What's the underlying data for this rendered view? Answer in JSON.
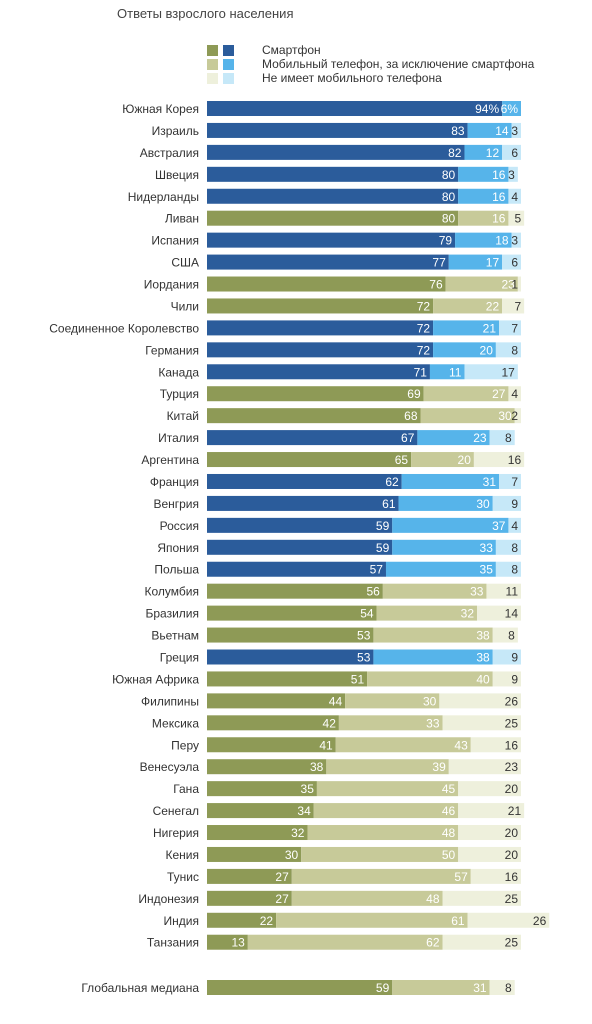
{
  "subtitle": "Ответы взрослого населения",
  "legend": [
    {
      "label": "Смартфон",
      "colors": [
        "#8e9a56",
        "#2b5c9b"
      ]
    },
    {
      "label": "Мобильный телефон, за исключение смартфона",
      "colors": [
        "#c7ca99",
        "#56b4ea"
      ]
    },
    {
      "label": "Не имеет мобильного телефона",
      "colors": [
        "#eef0dc",
        "#c6e8f8"
      ]
    }
  ],
  "colors": {
    "blue": [
      "#2b5c9b",
      "#56b4ea",
      "#c6e8f8"
    ],
    "green": [
      "#8e9a56",
      "#c7ca99",
      "#eef0dc"
    ]
  },
  "chart_data": {
    "type": "bar",
    "stacked": true,
    "orientation": "horizontal",
    "series_names": [
      "Смартфон",
      "Мобильный телефон, за исключение смартфона",
      "Не имеет мобильного телефона"
    ],
    "rows": [
      {
        "country": "Южная Корея",
        "values": [
          94,
          6,
          0
        ],
        "labels": [
          "94%",
          "6%",
          ""
        ],
        "palette": "blue"
      },
      {
        "country": "Израиль",
        "values": [
          83,
          14,
          3
        ],
        "labels": [
          "83",
          "14",
          "3"
        ],
        "palette": "blue"
      },
      {
        "country": "Австралия",
        "values": [
          82,
          12,
          6
        ],
        "labels": [
          "82",
          "12",
          "6"
        ],
        "palette": "blue"
      },
      {
        "country": "Швеция",
        "values": [
          80,
          16,
          3
        ],
        "labels": [
          "80",
          "16",
          "3"
        ],
        "palette": "blue"
      },
      {
        "country": "Нидерланды",
        "values": [
          80,
          16,
          4
        ],
        "labels": [
          "80",
          "16",
          "4"
        ],
        "palette": "blue"
      },
      {
        "country": "Ливан",
        "values": [
          80,
          16,
          5
        ],
        "labels": [
          "80",
          "16",
          "5"
        ],
        "palette": "green"
      },
      {
        "country": "Испания",
        "values": [
          79,
          18,
          3
        ],
        "labels": [
          "79",
          "18",
          "3"
        ],
        "palette": "blue"
      },
      {
        "country": "США",
        "values": [
          77,
          17,
          6
        ],
        "labels": [
          "77",
          "17",
          "6"
        ],
        "palette": "blue"
      },
      {
        "country": "Иордания",
        "values": [
          76,
          23,
          1
        ],
        "labels": [
          "76",
          "23",
          "1"
        ],
        "palette": "green"
      },
      {
        "country": "Чили",
        "values": [
          72,
          22,
          7
        ],
        "labels": [
          "72",
          "22",
          "7"
        ],
        "palette": "green"
      },
      {
        "country": "Соединенное Королевство",
        "values": [
          72,
          21,
          7
        ],
        "labels": [
          "72",
          "21",
          "7"
        ],
        "palette": "blue"
      },
      {
        "country": "Германия",
        "values": [
          72,
          20,
          8
        ],
        "labels": [
          "72",
          "20",
          "8"
        ],
        "palette": "blue"
      },
      {
        "country": "Канада",
        "values": [
          71,
          11,
          17
        ],
        "labels": [
          "71",
          "11",
          "17"
        ],
        "palette": "blue"
      },
      {
        "country": "Турция",
        "values": [
          69,
          27,
          4
        ],
        "labels": [
          "69",
          "27",
          "4"
        ],
        "palette": "green"
      },
      {
        "country": "Китай",
        "values": [
          68,
          30,
          2
        ],
        "labels": [
          "68",
          "30",
          "2"
        ],
        "palette": "green"
      },
      {
        "country": "Италия",
        "values": [
          67,
          23,
          8
        ],
        "labels": [
          "67",
          "23",
          "8"
        ],
        "palette": "blue"
      },
      {
        "country": "Аргентина",
        "values": [
          65,
          20,
          16
        ],
        "labels": [
          "65",
          "20",
          "16"
        ],
        "palette": "green"
      },
      {
        "country": "Франция",
        "values": [
          62,
          31,
          7
        ],
        "labels": [
          "62",
          "31",
          "7"
        ],
        "palette": "blue"
      },
      {
        "country": "Венгрия",
        "values": [
          61,
          30,
          9
        ],
        "labels": [
          "61",
          "30",
          "9"
        ],
        "palette": "blue"
      },
      {
        "country": "Россия",
        "values": [
          59,
          37,
          4
        ],
        "labels": [
          "59",
          "37",
          "4"
        ],
        "palette": "blue"
      },
      {
        "country": "Япония",
        "values": [
          59,
          33,
          8
        ],
        "labels": [
          "59",
          "33",
          "8"
        ],
        "palette": "blue"
      },
      {
        "country": "Польша",
        "values": [
          57,
          35,
          8
        ],
        "labels": [
          "57",
          "35",
          "8"
        ],
        "palette": "blue"
      },
      {
        "country": "Колумбия",
        "values": [
          56,
          33,
          11
        ],
        "labels": [
          "56",
          "33",
          "11"
        ],
        "palette": "green"
      },
      {
        "country": "Бразилия",
        "values": [
          54,
          32,
          14
        ],
        "labels": [
          "54",
          "32",
          "14"
        ],
        "palette": "green"
      },
      {
        "country": "Вьетнам",
        "values": [
          53,
          38,
          8
        ],
        "labels": [
          "53",
          "38",
          "8"
        ],
        "palette": "green"
      },
      {
        "country": "Греция",
        "values": [
          53,
          38,
          9
        ],
        "labels": [
          "53",
          "38",
          "9"
        ],
        "palette": "blue"
      },
      {
        "country": "Южная Африка",
        "values": [
          51,
          40,
          9
        ],
        "labels": [
          "51",
          "40",
          "9"
        ],
        "palette": "green"
      },
      {
        "country": "Филипины",
        "values": [
          44,
          30,
          26
        ],
        "labels": [
          "44",
          "30",
          "26"
        ],
        "palette": "green"
      },
      {
        "country": "Мексика",
        "values": [
          42,
          33,
          25
        ],
        "labels": [
          "42",
          "33",
          "25"
        ],
        "palette": "green"
      },
      {
        "country": "Перу",
        "values": [
          41,
          43,
          16
        ],
        "labels": [
          "41",
          "43",
          "16"
        ],
        "palette": "green"
      },
      {
        "country": "Венесуэла",
        "values": [
          38,
          39,
          23
        ],
        "labels": [
          "38",
          "39",
          "23"
        ],
        "palette": "green"
      },
      {
        "country": "Гана",
        "values": [
          35,
          45,
          20
        ],
        "labels": [
          "35",
          "45",
          "20"
        ],
        "palette": "green"
      },
      {
        "country": "Сенегал",
        "values": [
          34,
          46,
          21
        ],
        "labels": [
          "34",
          "46",
          "21"
        ],
        "palette": "green"
      },
      {
        "country": "Нигерия",
        "values": [
          32,
          48,
          20
        ],
        "labels": [
          "32",
          "48",
          "20"
        ],
        "palette": "green"
      },
      {
        "country": "Кения",
        "values": [
          30,
          50,
          20
        ],
        "labels": [
          "30",
          "50",
          "20"
        ],
        "palette": "green"
      },
      {
        "country": "Тунис",
        "values": [
          27,
          57,
          16
        ],
        "labels": [
          "27",
          "57",
          "16"
        ],
        "palette": "green"
      },
      {
        "country": "Индонезия",
        "values": [
          27,
          48,
          25
        ],
        "labels": [
          "27",
          "48",
          "25"
        ],
        "palette": "green"
      },
      {
        "country": "Индия",
        "values": [
          22,
          61,
          26
        ],
        "labels": [
          "22",
          "61",
          "26"
        ],
        "palette": "green"
      },
      {
        "country": "Танзания",
        "values": [
          13,
          62,
          25
        ],
        "labels": [
          "13",
          "62",
          "25"
        ],
        "palette": "green"
      }
    ],
    "median": {
      "country": "Глобальная медиана",
      "values": [
        59,
        31,
        8
      ],
      "labels": [
        "59",
        "31",
        "8"
      ],
      "palette": "green"
    }
  }
}
